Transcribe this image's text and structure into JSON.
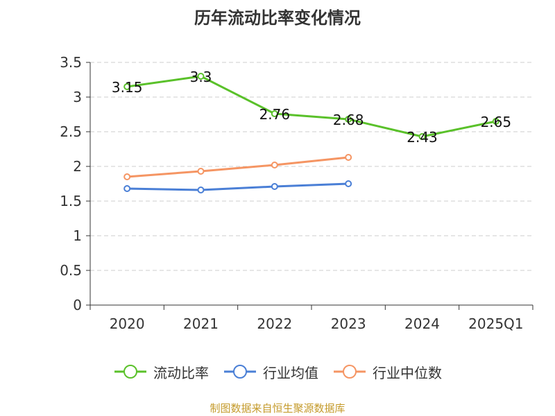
{
  "chart_data": {
    "type": "line",
    "title": "历年流动比率变化情况",
    "categories": [
      "2020",
      "2021",
      "2022",
      "2023",
      "2024",
      "2025Q1"
    ],
    "ylim": [
      0,
      3.5
    ],
    "yticks": [
      "0",
      "0.5",
      "1",
      "1.5",
      "2",
      "2.5",
      "3",
      "3.5"
    ],
    "grid": true,
    "legend_position": "bottom",
    "series": [
      {
        "name": "流动比率",
        "color": "#5ac12a",
        "values": [
          3.15,
          3.3,
          2.76,
          2.68,
          2.43,
          2.65
        ],
        "labels": [
          "3.15",
          "3.3",
          "2.76",
          "2.68",
          "2.43",
          "2.65"
        ]
      },
      {
        "name": "行业均值",
        "color": "#4a7fd6",
        "values": [
          1.68,
          1.66,
          1.71,
          1.75,
          null,
          null
        ]
      },
      {
        "name": "行业中位数",
        "color": "#f59563",
        "values": [
          1.85,
          1.93,
          2.02,
          2.13,
          null,
          null
        ]
      }
    ]
  },
  "source_note": "制图数据来自恒生聚源数据库"
}
